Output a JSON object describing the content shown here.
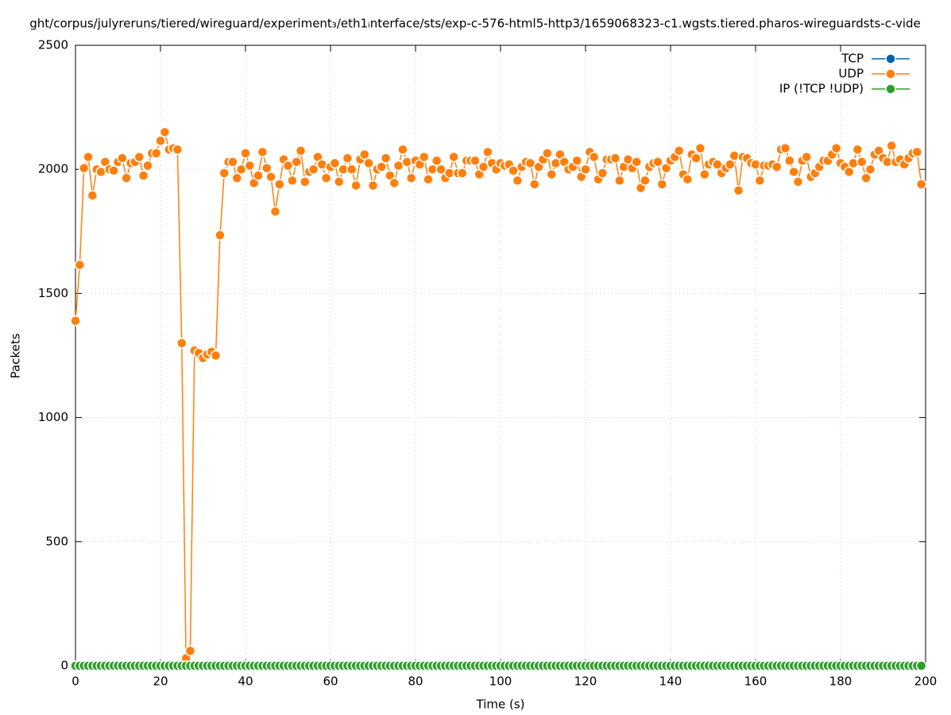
{
  "chart_data": {
    "type": "line",
    "title": "ght/corpus/julyreruns/tiered/wireguard/experiment₃/eth1ᵢnterface/sts/exp-c-576-html5-http3/1659068323-c1.wgsts.tiered.pharos-wireguardsts-c-vide",
    "x_label": "Time (s)",
    "y_label": "Packets",
    "xlim": [
      0,
      200
    ],
    "ylim": [
      0,
      2500
    ],
    "xticks": [
      0,
      20,
      40,
      60,
      80,
      100,
      120,
      140,
      160,
      180,
      200
    ],
    "yticks": [
      0,
      500,
      1000,
      1500,
      2000,
      2500
    ],
    "grid": true,
    "legend": "top-right",
    "x": [
      0,
      1,
      2,
      3,
      4,
      5,
      6,
      7,
      8,
      9,
      10,
      11,
      12,
      13,
      14,
      15,
      16,
      17,
      18,
      19,
      20,
      21,
      22,
      23,
      24,
      25,
      26,
      27,
      28,
      29,
      30,
      31,
      32,
      33,
      34,
      35,
      36,
      37,
      38,
      39,
      40,
      41,
      42,
      43,
      44,
      45,
      46,
      47,
      48,
      49,
      50,
      51,
      52,
      53,
      54,
      55,
      56,
      57,
      58,
      59,
      60,
      61,
      62,
      63,
      64,
      65,
      66,
      67,
      68,
      69,
      70,
      71,
      72,
      73,
      74,
      75,
      76,
      77,
      78,
      79,
      80,
      81,
      82,
      83,
      84,
      85,
      86,
      87,
      88,
      89,
      90,
      91,
      92,
      93,
      94,
      95,
      96,
      97,
      98,
      99,
      100,
      101,
      102,
      103,
      104,
      105,
      106,
      107,
      108,
      109,
      110,
      111,
      112,
      113,
      114,
      115,
      116,
      117,
      118,
      119,
      120,
      121,
      122,
      123,
      124,
      125,
      126,
      127,
      128,
      129,
      130,
      131,
      132,
      133,
      134,
      135,
      136,
      137,
      138,
      139,
      140,
      141,
      142,
      143,
      144,
      145,
      146,
      147,
      148,
      149,
      150,
      151,
      152,
      153,
      154,
      155,
      156,
      157,
      158,
      159,
      160,
      161,
      162,
      163,
      164,
      165,
      166,
      167,
      168,
      169,
      170,
      171,
      172,
      173,
      174,
      175,
      176,
      177,
      178,
      179,
      180,
      181,
      182,
      183,
      184,
      185,
      186,
      187,
      188,
      189,
      190,
      191,
      192,
      193,
      194,
      195,
      196,
      197,
      198,
      199
    ],
    "series": [
      {
        "name": "TCP",
        "color": "#0060ad",
        "values": [
          0,
          0,
          0,
          0,
          0,
          0,
          0,
          0,
          0,
          0,
          0,
          0,
          0,
          0,
          0,
          0,
          0,
          0,
          0,
          0,
          0,
          0,
          0,
          0,
          0,
          0,
          0,
          0,
          0,
          0,
          0,
          0,
          0,
          0,
          0,
          0,
          0,
          0,
          0,
          0,
          0,
          0,
          0,
          0,
          0,
          0,
          0,
          0,
          0,
          0,
          0,
          0,
          0,
          0,
          0,
          0,
          0,
          0,
          0,
          0,
          0,
          0,
          0,
          0,
          0,
          0,
          0,
          0,
          0,
          0,
          0,
          0,
          0,
          0,
          0,
          0,
          0,
          0,
          0,
          0,
          0,
          0,
          0,
          0,
          0,
          0,
          0,
          0,
          0,
          0,
          0,
          0,
          0,
          0,
          0,
          0,
          0,
          0,
          0,
          0,
          0,
          0,
          0,
          0,
          0,
          0,
          0,
          0,
          0,
          0,
          0,
          0,
          0,
          0,
          0,
          0,
          0,
          0,
          0,
          0,
          0,
          0,
          0,
          0,
          0,
          0,
          0,
          0,
          0,
          0,
          0,
          0,
          0,
          0,
          0,
          0,
          0,
          0,
          0,
          0,
          0,
          0,
          0,
          0,
          0,
          0,
          0,
          0,
          0,
          0,
          0,
          0,
          0,
          0,
          0,
          0,
          0,
          0,
          0,
          0,
          0,
          0,
          0,
          0,
          0,
          0,
          0,
          0,
          0,
          0,
          0,
          0,
          0,
          0,
          0,
          0,
          0,
          0,
          0,
          0,
          0,
          0,
          0,
          0,
          0,
          0,
          0,
          0,
          0,
          0,
          0,
          0,
          0,
          0,
          0,
          0,
          0,
          0,
          0,
          0
        ]
      },
      {
        "name": "UDP",
        "color": "#ff7f0e",
        "values": [
          1390,
          1615,
          2005,
          2050,
          1895,
          2000,
          1990,
          2030,
          2000,
          1995,
          2030,
          2045,
          1965,
          2025,
          2030,
          2050,
          1975,
          2015,
          2065,
          2065,
          2115,
          2150,
          2080,
          2085,
          2080,
          1300,
          30,
          60,
          1270,
          1260,
          1240,
          1255,
          1265,
          1250,
          1735,
          1985,
          2030,
          2030,
          1965,
          2000,
          2065,
          2015,
          1945,
          1975,
          2070,
          2005,
          1970,
          1830,
          1940,
          2040,
          2015,
          1955,
          2030,
          2075,
          1950,
          1990,
          2000,
          2050,
          2020,
          1965,
          2010,
          2025,
          1950,
          2000,
          2045,
          2000,
          1935,
          2040,
          2060,
          2025,
          1935,
          2000,
          2010,
          2045,
          1975,
          1945,
          2015,
          2080,
          2030,
          1965,
          2035,
          2020,
          2050,
          1960,
          2000,
          2035,
          2000,
          1965,
          1985,
          2050,
          1985,
          1985,
          2035,
          2035,
          2035,
          1980,
          2010,
          2070,
          2025,
          2000,
          2025,
          2015,
          2020,
          1995,
          1955,
          2010,
          2030,
          2025,
          1940,
          2010,
          2040,
          2065,
          1980,
          2025,
          2060,
          2030,
          2000,
          2010,
          2035,
          1970,
          2000,
          2070,
          2050,
          1960,
          1985,
          2040,
          2040,
          2045,
          1955,
          2010,
          2040,
          2005,
          2030,
          1925,
          1955,
          2010,
          2025,
          2030,
          1940,
          2005,
          2035,
          2050,
          2075,
          1980,
          1960,
          2060,
          2045,
          2085,
          1980,
          2020,
          2030,
          2020,
          1985,
          2005,
          2020,
          2055,
          1915,
          2050,
          2045,
          2025,
          2020,
          1955,
          2015,
          2015,
          2020,
          2010,
          2080,
          2085,
          2035,
          1990,
          1950,
          2035,
          2050,
          1970,
          1985,
          2010,
          2035,
          2035,
          2060,
          2085,
          2025,
          2010,
          1990,
          2025,
          2080,
          2030,
          1965,
          2000,
          2060,
          2075,
          2045,
          2030,
          2095,
          2030,
          2040,
          2020,
          2045,
          2065,
          2070,
          1940
        ]
      },
      {
        "name": "IP (!TCP  !UDP)",
        "color": "#2ca02c",
        "values": [
          0,
          0,
          0,
          0,
          0,
          0,
          0,
          0,
          0,
          0,
          0,
          0,
          0,
          0,
          0,
          0,
          0,
          0,
          0,
          0,
          0,
          0,
          0,
          0,
          0,
          0,
          0,
          0,
          0,
          0,
          0,
          0,
          0,
          0,
          0,
          0,
          0,
          0,
          0,
          0,
          0,
          0,
          0,
          0,
          0,
          0,
          0,
          0,
          0,
          0,
          0,
          0,
          0,
          0,
          0,
          0,
          0,
          0,
          0,
          0,
          0,
          0,
          0,
          0,
          0,
          0,
          0,
          0,
          0,
          0,
          0,
          0,
          0,
          0,
          0,
          0,
          0,
          0,
          0,
          0,
          0,
          0,
          0,
          0,
          0,
          0,
          0,
          0,
          0,
          0,
          0,
          0,
          0,
          0,
          0,
          0,
          0,
          0,
          0,
          0,
          0,
          0,
          0,
          0,
          0,
          0,
          0,
          0,
          0,
          0,
          0,
          0,
          0,
          0,
          0,
          0,
          0,
          0,
          0,
          0,
          0,
          0,
          0,
          0,
          0,
          0,
          0,
          0,
          0,
          0,
          0,
          0,
          0,
          0,
          0,
          0,
          0,
          0,
          0,
          0,
          0,
          0,
          0,
          0,
          0,
          0,
          0,
          0,
          0,
          0,
          0,
          0,
          0,
          0,
          0,
          0,
          0,
          0,
          0,
          0,
          0,
          0,
          0,
          0,
          0,
          0,
          0,
          0,
          0,
          0,
          0,
          0,
          0,
          0,
          0,
          0,
          0,
          0,
          0,
          0,
          0,
          0,
          0,
          0,
          0,
          0,
          0,
          0,
          0,
          0,
          0,
          0,
          0,
          0,
          0,
          0,
          0,
          0,
          0,
          0
        ]
      }
    ]
  }
}
